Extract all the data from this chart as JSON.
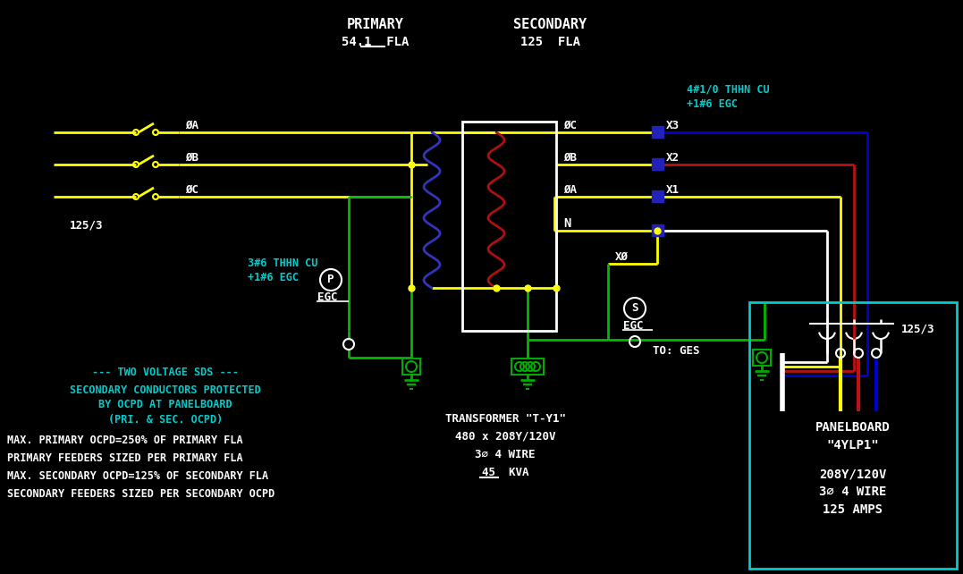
{
  "bg": "#000000",
  "yw": "#FFFF00",
  "gn": "#00BB00",
  "bl": "#0000CC",
  "rd": "#BB1111",
  "wh": "#FFFFFF",
  "cy": "#00CCCC",
  "coil_bl": "#3333BB",
  "coil_rd": "#AA1111",
  "pg": "#00AA00",
  "term_bl": "#2222BB",
  "panel_border": "#00CCCC",
  "title_pri": "PRIMARY",
  "fla_pri": "54.1  FLA",
  "title_sec": "SECONDARY",
  "fla_sec": "125  FLA",
  "pri_wire": "3#6 THHN CU",
  "pri_wire2": "+1#6 EGC",
  "sec_wire": "4#1/0 THHN CU",
  "sec_wire2": "+1#6 EGC",
  "transformer_line1": "TRANSFORMER \"T-Y1\"",
  "transformer_line2": "480 x 208Y/120V",
  "transformer_line3": "3∅ 4 WIRE",
  "transformer_line4": "45  KVA",
  "panel_line1": "PANELBOARD",
  "panel_line2": "\"4YLP1\"",
  "panel_line3": "208Y/120V",
  "panel_line4": "3∅ 4 WIRE",
  "panel_line5": "125 AMPS",
  "note1": "--- TWO VOLTAGE SDS ---",
  "note2": "SECONDARY CONDUCTORS PROTECTED",
  "note3": "BY OCPD AT PANELBOARD",
  "note4": "(PRI. & SEC. OCPD)",
  "note5": "MAX. PRIMARY OCPD=250% OF PRIMARY FLA",
  "note6": "PRIMARY FEEDERS SIZED PER PRIMARY FLA",
  "note7": "MAX. SECONDARY OCPD=125% OF SECONDARY FLA",
  "note8": "SECONDARY FEEDERS SIZED PER SECONDARY OCPD",
  "to_ges": "TO: GES",
  "lbl_125_3": "125/3",
  "phA": "ØA",
  "phB": "ØB",
  "phC": "ØC",
  "lN": "N",
  "lX0": "XØ",
  "lX1": "X1",
  "lX2": "X2",
  "lX3": "X3",
  "lP": "P",
  "lS": "S",
  "lEGC": "EGC"
}
